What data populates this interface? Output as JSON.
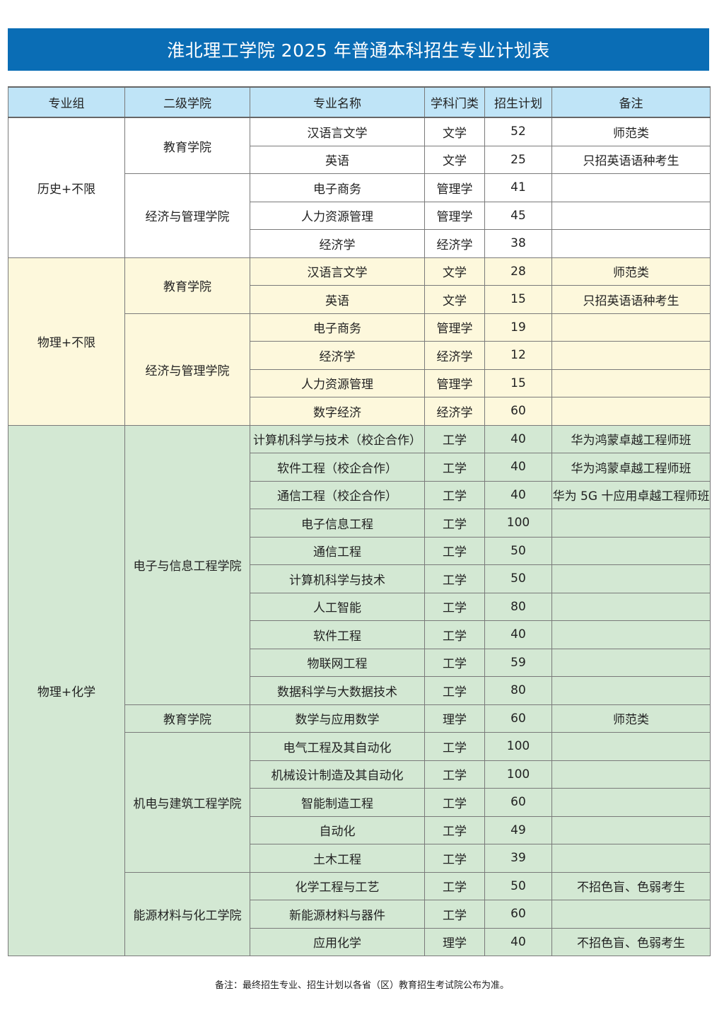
{
  "title": "淮北理工学院 2025 年普通本科招生专业计划表",
  "columns": [
    "专业组",
    "二级学院",
    "专业名称",
    "学科门类",
    "招生计划",
    "备注"
  ],
  "colors": {
    "banner": "#0a6db5",
    "header": "#bfe4f7",
    "group_1": "#ffffff",
    "group_2": "#fdf8dc",
    "group_3": "#d3e8d3"
  },
  "groups": [
    {
      "name": "历史+不限",
      "colleges": [
        {
          "name": "教育学院",
          "majors": [
            {
              "name": "汉语言文学",
              "category": "文学",
              "plan": "52",
              "note": "师范类"
            },
            {
              "name": "英语",
              "category": "文学",
              "plan": "25",
              "note": "只招英语语种考生"
            }
          ]
        },
        {
          "name": "经济与管理学院",
          "majors": [
            {
              "name": "电子商务",
              "category": "管理学",
              "plan": "41",
              "note": ""
            },
            {
              "name": "人力资源管理",
              "category": "管理学",
              "plan": "45",
              "note": ""
            },
            {
              "name": "经济学",
              "category": "经济学",
              "plan": "38",
              "note": ""
            }
          ]
        }
      ]
    },
    {
      "name": "物理+不限",
      "colleges": [
        {
          "name": "教育学院",
          "majors": [
            {
              "name": "汉语言文学",
              "category": "文学",
              "plan": "28",
              "note": "师范类"
            },
            {
              "name": "英语",
              "category": "文学",
              "plan": "15",
              "note": "只招英语语种考生"
            }
          ]
        },
        {
          "name": "经济与管理学院",
          "majors": [
            {
              "name": "电子商务",
              "category": "管理学",
              "plan": "19",
              "note": ""
            },
            {
              "name": "经济学",
              "category": "经济学",
              "plan": "12",
              "note": ""
            },
            {
              "name": "人力资源管理",
              "category": "管理学",
              "plan": "15",
              "note": ""
            },
            {
              "name": "数字经济",
              "category": "经济学",
              "plan": "60",
              "note": ""
            }
          ]
        }
      ]
    },
    {
      "name": "物理+化学",
      "colleges": [
        {
          "name": "电子与信息工程学院",
          "majors": [
            {
              "name": "计算机科学与技术（校企合作）",
              "category": "工学",
              "plan": "40",
              "note": "华为鸿蒙卓越工程师班"
            },
            {
              "name": "软件工程（校企合作）",
              "category": "工学",
              "plan": "40",
              "note": "华为鸿蒙卓越工程师班"
            },
            {
              "name": "通信工程（校企合作）",
              "category": "工学",
              "plan": "40",
              "note": "华为 5G 十应用卓越工程师班"
            },
            {
              "name": "电子信息工程",
              "category": "工学",
              "plan": "100",
              "note": ""
            },
            {
              "name": "通信工程",
              "category": "工学",
              "plan": "50",
              "note": ""
            },
            {
              "name": "计算机科学与技术",
              "category": "工学",
              "plan": "50",
              "note": ""
            },
            {
              "name": "人工智能",
              "category": "工学",
              "plan": "80",
              "note": ""
            },
            {
              "name": "软件工程",
              "category": "工学",
              "plan": "40",
              "note": ""
            },
            {
              "name": "物联网工程",
              "category": "工学",
              "plan": "59",
              "note": ""
            },
            {
              "name": "数据科学与大数据技术",
              "category": "工学",
              "plan": "80",
              "note": ""
            }
          ]
        },
        {
          "name": "教育学院",
          "majors": [
            {
              "name": "数学与应用数学",
              "category": "理学",
              "plan": "60",
              "note": "师范类"
            }
          ]
        },
        {
          "name": "机电与建筑工程学院",
          "majors": [
            {
              "name": "电气工程及其自动化",
              "category": "工学",
              "plan": "100",
              "note": ""
            },
            {
              "name": "机械设计制造及其自动化",
              "category": "工学",
              "plan": "100",
              "note": ""
            },
            {
              "name": "智能制造工程",
              "category": "工学",
              "plan": "60",
              "note": ""
            },
            {
              "name": "自动化",
              "category": "工学",
              "plan": "49",
              "note": ""
            },
            {
              "name": "土木工程",
              "category": "工学",
              "plan": "39",
              "note": ""
            }
          ]
        },
        {
          "name": "能源材料与化工学院",
          "majors": [
            {
              "name": "化学工程与工艺",
              "category": "工学",
              "plan": "50",
              "note": "不招色盲、色弱考生"
            },
            {
              "name": "新能源材料与器件",
              "category": "工学",
              "plan": "60",
              "note": ""
            },
            {
              "name": "应用化学",
              "category": "理学",
              "plan": "40",
              "note": "不招色盲、色弱考生"
            }
          ]
        }
      ]
    }
  ],
  "footnote": "备注：最终招生专业、招生计划以各省（区）教育招生考试院公布为准。"
}
